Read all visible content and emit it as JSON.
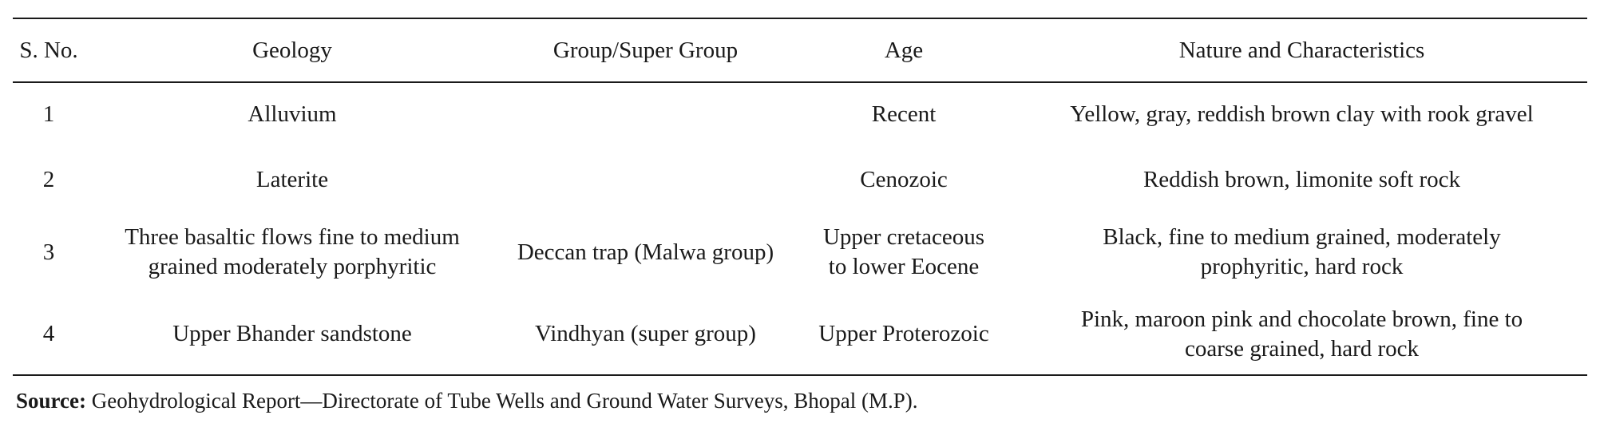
{
  "table": {
    "headers": [
      "S. No.",
      "Geology",
      "Group/Super Group",
      "Age",
      "Nature and Characteristics"
    ],
    "rows": [
      {
        "sno": "1",
        "geology": [
          "Alluvium"
        ],
        "group": [],
        "age": [
          "Recent"
        ],
        "nature": [
          "Yellow, gray, reddish brown clay with rook gravel"
        ]
      },
      {
        "sno": "2",
        "geology": [
          "Laterite"
        ],
        "group": [],
        "age": [
          "Cenozoic"
        ],
        "nature": [
          "Reddish brown, limonite soft rock"
        ]
      },
      {
        "sno": "3",
        "geology": [
          "Three basaltic flows fine to medium",
          "grained moderately porphyritic"
        ],
        "group": [
          "Deccan trap (Malwa group)"
        ],
        "age": [
          "Upper cretaceous",
          "to lower Eocene"
        ],
        "nature": [
          "Black, fine to medium grained, moderately",
          "prophyritic, hard rock"
        ]
      },
      {
        "sno": "4",
        "geology": [
          "Upper Bhander sandstone"
        ],
        "group": [
          "Vindhyan (super group)"
        ],
        "age": [
          "Upper Proterozoic"
        ],
        "nature": [
          "Pink, maroon pink and chocolate brown, fine to",
          "coarse grained, hard rock"
        ]
      }
    ]
  },
  "source": {
    "label": "Source:",
    "text": " Geohydrological Report—Directorate of Tube Wells and Ground Water Surveys, Bhopal (M.P)."
  }
}
